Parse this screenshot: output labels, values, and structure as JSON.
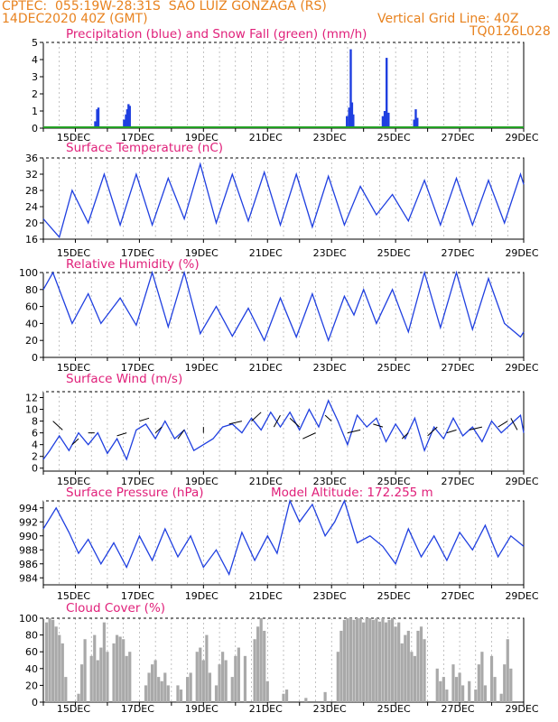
{
  "header": {
    "line1": "CPTEC:  055:19W-28:31S  SAO LUIZ GONZAGA (RS)",
    "line2_left": "14DEC2020 40Z (GMT)",
    "line2_right": "Vertical Grid Line: 40Z",
    "code": "TQ0126L028",
    "color": "#e8821e"
  },
  "colors": {
    "title": "#e0207a",
    "line": "#1f3fe0",
    "snow": "#22a022",
    "cloud": "#a9a9a9"
  },
  "x_ticks": [
    "15DEC",
    "17DEC",
    "19DEC",
    "21DEC",
    "23DEC",
    "25DEC",
    "27DEC",
    "29DEC"
  ],
  "chart_data": [
    {
      "type": "bar",
      "title": "Precipitation (blue) and Snow Fall (green) (mm/h)",
      "x_range_days": [
        14.0,
        29.0
      ],
      "ylim": [
        0,
        5
      ],
      "yticks": [
        "0",
        "1",
        "2",
        "3",
        "4",
        "5"
      ],
      "series": [
        {
          "name": "Precipitation",
          "color": "#1f3fe0",
          "x": [
            15.62,
            15.68,
            15.72,
            16.52,
            16.58,
            16.62,
            16.66,
            16.7,
            23.48,
            23.55,
            23.6,
            23.64,
            23.68,
            24.6,
            24.66,
            24.72,
            24.78,
            25.58,
            25.63,
            25.68
          ],
          "values": [
            0.4,
            1.1,
            1.2,
            0.5,
            0.8,
            1.1,
            1.4,
            1.3,
            0.7,
            1.2,
            4.6,
            1.5,
            0.8,
            0.7,
            1.0,
            4.1,
            0.9,
            0.5,
            1.1,
            0.6
          ]
        },
        {
          "name": "Snow Fall",
          "color": "#22a022",
          "values": [
            0
          ]
        }
      ]
    },
    {
      "type": "line",
      "title": "Surface Temperature (nC)",
      "x_range_days": [
        14.0,
        29.0
      ],
      "ylim": [
        16,
        36
      ],
      "yticks": [
        "16",
        "20",
        "24",
        "28",
        "32",
        "36"
      ],
      "x": [
        14.0,
        14.5,
        14.9,
        15.4,
        15.9,
        16.4,
        16.9,
        17.4,
        17.9,
        18.4,
        18.9,
        19.4,
        19.9,
        20.4,
        20.9,
        21.4,
        21.9,
        22.4,
        22.9,
        23.4,
        23.9,
        24.4,
        24.9,
        25.4,
        25.9,
        26.4,
        26.9,
        27.4,
        27.9,
        28.4,
        28.9,
        29.0
      ],
      "values": [
        21,
        16.5,
        28,
        20,
        32,
        19.5,
        32,
        19.5,
        31,
        21,
        34.5,
        20,
        32,
        20.5,
        32.5,
        19.5,
        32,
        19,
        31.5,
        19.5,
        29,
        22,
        27,
        20.5,
        30.5,
        19.5,
        31,
        19.5,
        30.5,
        20,
        32,
        29.5
      ]
    },
    {
      "type": "line",
      "title": "Relative Humidity (%)",
      "x_range_days": [
        14.0,
        29.0
      ],
      "ylim": [
        0,
        100
      ],
      "yticks": [
        "0",
        "20",
        "40",
        "60",
        "80",
        "100"
      ],
      "x": [
        14.0,
        14.3,
        14.9,
        15.4,
        15.8,
        16.4,
        16.9,
        17.4,
        17.9,
        18.4,
        18.9,
        19.4,
        19.9,
        20.4,
        20.9,
        21.4,
        21.9,
        22.4,
        22.9,
        23.4,
        23.7,
        24.0,
        24.4,
        24.9,
        25.4,
        25.9,
        26.4,
        26.9,
        27.4,
        27.9,
        28.4,
        28.9,
        29.0
      ],
      "values": [
        80,
        100,
        40,
        75,
        40,
        70,
        38,
        100,
        36,
        100,
        28,
        60,
        25,
        58,
        20,
        70,
        24,
        75,
        20,
        72,
        50,
        80,
        40,
        80,
        30,
        100,
        35,
        100,
        33,
        93,
        40,
        24,
        30
      ]
    },
    {
      "type": "line",
      "title": "Surface Wind (m/s)",
      "x_range_days": [
        14.0,
        29.0
      ],
      "ylim": [
        -0.5,
        13
      ],
      "yticks": [
        "0",
        "2",
        "4",
        "6",
        "8",
        "10",
        "12"
      ],
      "x": [
        14.0,
        14.2,
        14.5,
        14.8,
        15.1,
        15.4,
        15.7,
        16.0,
        16.3,
        16.6,
        16.9,
        17.2,
        17.5,
        17.8,
        18.1,
        18.4,
        18.7,
        19.0,
        19.3,
        19.6,
        19.9,
        20.2,
        20.5,
        20.8,
        21.1,
        21.4,
        21.7,
        22.0,
        22.3,
        22.6,
        22.9,
        23.2,
        23.5,
        23.8,
        24.1,
        24.4,
        24.7,
        25.0,
        25.3,
        25.6,
        25.9,
        26.2,
        26.5,
        26.8,
        27.1,
        27.4,
        27.7,
        28.0,
        28.3,
        28.6,
        28.9,
        29.0
      ],
      "values": [
        1.5,
        3,
        5.5,
        3,
        6,
        4,
        6,
        2.5,
        5,
        1.5,
        6.5,
        7.5,
        5,
        8,
        5,
        6.5,
        3,
        4,
        5,
        7,
        7.5,
        6,
        8.5,
        6.5,
        9.5,
        7,
        9.5,
        6.5,
        10,
        7,
        11.5,
        8,
        4,
        9,
        7,
        8.5,
        4.5,
        7.5,
        5,
        8.5,
        3,
        7,
        5,
        8.5,
        5.5,
        7,
        4.5,
        8,
        6,
        7.5,
        9,
        6
      ]
    },
    {
      "type": "line",
      "title": "Surface Pressure (hPa)",
      "annotation": "Model Altitude: 172.255 m",
      "x_range_days": [
        14.0,
        29.0
      ],
      "ylim": [
        983,
        995
      ],
      "yticks": [
        "984",
        "986",
        "988",
        "990",
        "992",
        "994"
      ],
      "x": [
        14.0,
        14.4,
        14.8,
        15.1,
        15.4,
        15.8,
        16.2,
        16.6,
        17.0,
        17.4,
        17.8,
        18.2,
        18.6,
        19.0,
        19.4,
        19.8,
        20.2,
        20.6,
        21.0,
        21.3,
        21.7,
        22.0,
        22.4,
        22.8,
        23.1,
        23.4,
        23.8,
        24.2,
        24.6,
        25.0,
        25.4,
        25.8,
        26.2,
        26.6,
        27.0,
        27.4,
        27.8,
        28.2,
        28.6,
        29.0
      ],
      "values": [
        991,
        994,
        990.5,
        987.5,
        989.5,
        986,
        989,
        985.5,
        990,
        986.5,
        991,
        987,
        990,
        985.5,
        988,
        984.5,
        990.5,
        986.5,
        990,
        987.5,
        995,
        992,
        994.5,
        990,
        992,
        995,
        989,
        990,
        988.5,
        986,
        991,
        987,
        990,
        986.5,
        990.5,
        988,
        991.5,
        987,
        990,
        988.5
      ]
    },
    {
      "type": "bar",
      "title": "Cloud Cover (%)",
      "x_range_days": [
        14.0,
        29.0
      ],
      "ylim": [
        0,
        100
      ],
      "yticks": [
        "0",
        "20",
        "40",
        "60",
        "80",
        "100"
      ],
      "x": [
        14.1,
        14.2,
        14.3,
        14.4,
        14.5,
        14.6,
        14.7,
        15.1,
        15.2,
        15.3,
        15.5,
        15.6,
        15.7,
        15.8,
        15.9,
        16.0,
        16.2,
        16.3,
        16.4,
        16.5,
        16.6,
        16.7,
        17.2,
        17.3,
        17.4,
        17.5,
        17.6,
        17.7,
        17.8,
        17.9,
        18.2,
        18.3,
        18.5,
        18.6,
        18.8,
        18.9,
        19.0,
        19.1,
        19.2,
        19.4,
        19.5,
        19.6,
        19.7,
        19.9,
        20.0,
        20.1,
        20.3,
        20.6,
        20.7,
        20.8,
        20.9,
        21.0,
        21.5,
        21.6,
        22.2,
        22.8,
        23.2,
        23.3,
        23.4,
        23.5,
        23.6,
        23.7,
        23.8,
        23.9,
        24.0,
        24.1,
        24.2,
        24.3,
        24.4,
        24.5,
        24.6,
        24.7,
        24.8,
        24.9,
        25.0,
        25.1,
        25.2,
        25.3,
        25.4,
        25.5,
        25.6,
        25.7,
        25.8,
        25.9,
        26.3,
        26.4,
        26.5,
        26.6,
        26.8,
        26.9,
        27.0,
        27.1,
        27.3,
        27.5,
        27.6,
        27.7,
        27.8,
        28.0,
        28.1,
        28.3,
        28.4,
        28.5,
        28.6
      ],
      "values": [
        95,
        100,
        98,
        90,
        80,
        70,
        30,
        10,
        45,
        75,
        55,
        80,
        50,
        65,
        95,
        60,
        70,
        80,
        78,
        75,
        55,
        60,
        20,
        35,
        45,
        50,
        30,
        25,
        35,
        20,
        20,
        15,
        30,
        35,
        60,
        65,
        50,
        80,
        35,
        20,
        45,
        60,
        50,
        30,
        55,
        65,
        55,
        75,
        90,
        100,
        85,
        25,
        10,
        15,
        5,
        12,
        60,
        85,
        98,
        100,
        100,
        98,
        100,
        100,
        95,
        100,
        100,
        98,
        100,
        96,
        100,
        95,
        98,
        100,
        90,
        95,
        70,
        80,
        85,
        60,
        55,
        85,
        90,
        75,
        40,
        25,
        30,
        15,
        45,
        30,
        35,
        20,
        25,
        15,
        45,
        60,
        20,
        55,
        30,
        10,
        45,
        75,
        40
      ]
    }
  ]
}
